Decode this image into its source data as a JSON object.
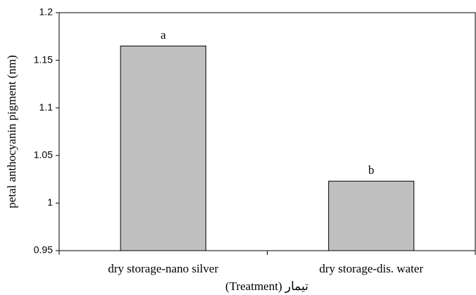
{
  "chart_data": {
    "type": "bar",
    "y_label": "petal anthocyanin pigment (nm)",
    "x_label": "(Treatment) تیمار",
    "categories": [
      "dry storage-nano silver",
      "dry storage-dis. water"
    ],
    "values": [
      1.165,
      1.023
    ],
    "bar_labels": [
      "a",
      "b"
    ],
    "color": "#c0c0c0",
    "ylim": [
      0.95,
      1.2
    ],
    "yticks": [
      0.95,
      1,
      1.05,
      1.1,
      1.15,
      1.2
    ],
    "grid": false
  }
}
